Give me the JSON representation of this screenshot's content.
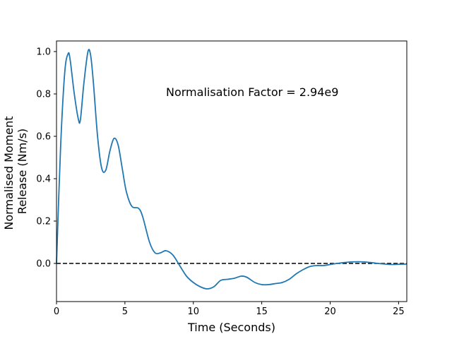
{
  "chart_data": {
    "type": "line",
    "title": "",
    "xlabel": "Time (Seconds)",
    "ylabel_lines": [
      "Normalised Moment",
      "Release (Nm/s)"
    ],
    "xlim": [
      0,
      25.6
    ],
    "ylim": [
      -0.18,
      1.05
    ],
    "xticks": [
      0,
      5,
      10,
      15,
      20,
      25
    ],
    "yticks": [
      0.0,
      0.2,
      0.4,
      0.6,
      0.8,
      1.0
    ],
    "ytick_labels": [
      "0.0",
      "0.2",
      "0.4",
      "0.6",
      "0.8",
      "1.0"
    ],
    "grid": false,
    "annotation": {
      "text": "Normalisation Factor = 2.94e9",
      "x": 8.0,
      "y": 0.81
    },
    "reference_line": {
      "y": 0.0,
      "style": "dashed",
      "color": "#000000"
    },
    "series": [
      {
        "color": "#1f77b4",
        "x": [
          0,
          0.3,
          0.6,
          0.85,
          1.0,
          1.3,
          1.6,
          1.75,
          2.0,
          2.3,
          2.5,
          2.7,
          3.0,
          3.3,
          3.6,
          3.9,
          4.2,
          4.5,
          4.8,
          5.1,
          5.5,
          6.0,
          6.3,
          6.8,
          7.2,
          7.6,
          8.0,
          8.5,
          9.0,
          9.5,
          10.0,
          10.5,
          11.0,
          11.5,
          12.0,
          12.5,
          13.0,
          13.5,
          13.9,
          14.5,
          15.0,
          15.5,
          16.0,
          16.5,
          17.0,
          17.5,
          18.0,
          18.5,
          19.0,
          19.5,
          20.0,
          20.5,
          21.0,
          21.5,
          22.0,
          22.5,
          23.0,
          23.5,
          24.0,
          24.5,
          25.0,
          25.6
        ],
        "y": [
          0.0,
          0.55,
          0.9,
          0.99,
          0.96,
          0.8,
          0.68,
          0.68,
          0.85,
          1.0,
          0.98,
          0.85,
          0.6,
          0.45,
          0.44,
          0.53,
          0.59,
          0.56,
          0.45,
          0.34,
          0.27,
          0.26,
          0.22,
          0.1,
          0.05,
          0.05,
          0.06,
          0.04,
          -0.01,
          -0.06,
          -0.09,
          -0.11,
          -0.12,
          -0.11,
          -0.08,
          -0.075,
          -0.07,
          -0.06,
          -0.065,
          -0.09,
          -0.1,
          -0.1,
          -0.095,
          -0.09,
          -0.075,
          -0.05,
          -0.03,
          -0.015,
          -0.01,
          -0.01,
          -0.005,
          0.0,
          0.004,
          0.007,
          0.008,
          0.007,
          0.004,
          0.0,
          -0.003,
          -0.005,
          -0.004,
          -0.003
        ]
      }
    ]
  }
}
